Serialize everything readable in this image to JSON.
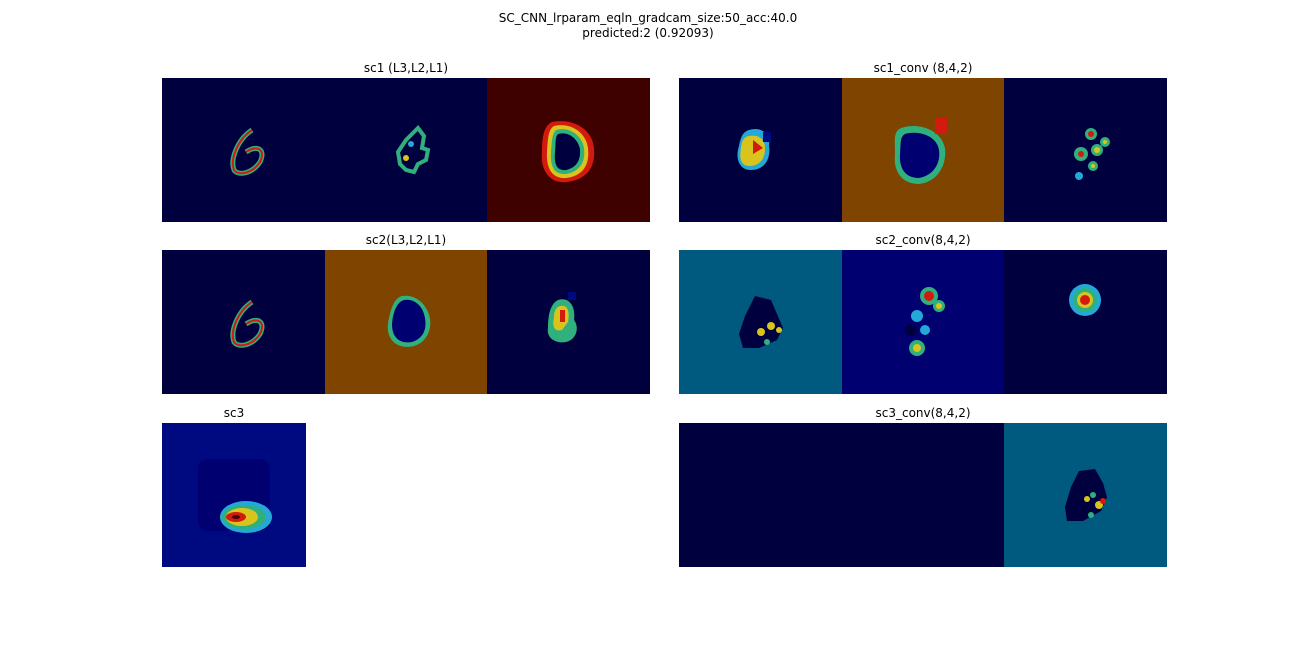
{
  "figure": {
    "title_line1": "SC_CNN_lrparam_eqln_gradcam_size:50_acc:40.0",
    "title_line2": "predicted:2 (0.92093)"
  },
  "panels": {
    "sc1": {
      "title": "sc1 (L3,L2,L1)"
    },
    "sc1_conv": {
      "title": "sc1_conv (8,4,2)"
    },
    "sc2": {
      "title": "sc2(L3,L2,L1)"
    },
    "sc2_conv": {
      "title": "sc2_conv(8,4,2)"
    },
    "sc3": {
      "title": "sc3"
    },
    "sc3_conv": {
      "title": "sc3_conv(8,4,2)"
    }
  },
  "colors": {
    "jet_dark_navy": "#00003f",
    "jet_dark_blue": "#000a80",
    "jet_blue": "#000070",
    "jet_dark_red": "#3f0000",
    "jet_orange_brown": "#7f4500",
    "jet_teal": "#005a7f",
    "heat_red": "#d21a0f",
    "heat_yellow": "#d8c41c",
    "heat_green": "#2fb07d",
    "heat_cyan": "#24a8d8"
  },
  "colormap": "jet"
}
